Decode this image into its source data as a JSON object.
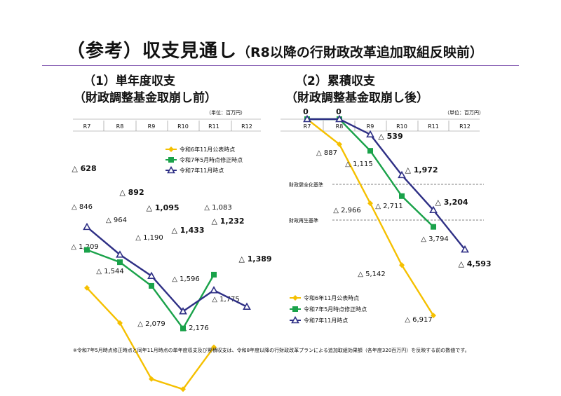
{
  "title": {
    "main": "（参考）収支見通し",
    "sub": "（R8以降の行財政改革追加取組反映前）"
  },
  "panel1": {
    "heading": "（1）単年度収支",
    "subheading": "（財政調整基金取崩し前）"
  },
  "panel2": {
    "heading": "（2）累積収支",
    "subheading": "（財政調整基金取崩し後）"
  },
  "footnote": "※令和7年5月時点修正時点と同年11月時点の単年度収支及び累積収支は、令和8年度以降の行財政改革プランによる追加取組効果額（各年度320百万円）を反映する前の数値です。",
  "colors": {
    "series1": "#f5c000",
    "series2": "#1aa24a",
    "series3": "#2e2f85",
    "rule": "#8e68b8"
  },
  "chart_data": [
    {
      "type": "line",
      "title": "（1）単年度収支（財政調整基金取崩し前）",
      "unit": "（単位：百万円）",
      "categories": [
        "R7",
        "R8",
        "R9",
        "R10",
        "R11",
        "R12"
      ],
      "sign": "△ denotes deficit; values plotted as negatives",
      "ylim": [
        -2300,
        0
      ],
      "series": [
        {
          "name": "令和6年11月公表時点",
          "marker": "diamond",
          "values": [
            -1209,
            -1544,
            -2079,
            -2176,
            -1775,
            null
          ],
          "labels": [
            "△ 1,209",
            "△ 1,544",
            "△ 2,079",
            "△ 2,176",
            "△ 1,775",
            ""
          ]
        },
        {
          "name": "令和7年5月時点修正時点",
          "marker": "square",
          "values": [
            -846,
            -964,
            -1190,
            -1596,
            -1083,
            null
          ],
          "labels": [
            "△ 846",
            "△ 964",
            "△ 1,190",
            "△ 1,596",
            "△ 1,083",
            ""
          ]
        },
        {
          "name": "令和7年11月時点",
          "marker": "triangle",
          "values": [
            -628,
            -892,
            -1095,
            -1433,
            -1232,
            -1389
          ],
          "labels": [
            "△ 628",
            "△ 892",
            "△ 1,095",
            "△ 1,433",
            "△ 1,232",
            "△ 1,389"
          ]
        }
      ],
      "legend_position": "top-right"
    },
    {
      "type": "line",
      "title": "（2）累積収支（財政調整基金取崩し後）",
      "unit": "（単位：百万円）",
      "categories": [
        "R7",
        "R8",
        "R9",
        "R10",
        "R11",
        "R12"
      ],
      "ylim": [
        -7000,
        0
      ],
      "series": [
        {
          "name": "令和6年11月公表時点",
          "marker": "diamond",
          "values": [
            0,
            -887,
            -2966,
            -5142,
            -6917,
            null
          ],
          "labels": [
            "",
            "△ 887",
            "△ 2,966",
            "△ 5,142",
            "△ 6,917",
            ""
          ]
        },
        {
          "name": "令和7年5月時点修正時点",
          "marker": "square",
          "values": [
            0,
            0,
            -1115,
            -2711,
            -3794,
            null
          ],
          "labels": [
            "",
            "",
            "△ 1,115",
            "△ 2,711",
            "△ 3,794",
            ""
          ]
        },
        {
          "name": "令和7年11月時点",
          "marker": "triangle",
          "values": [
            0,
            0,
            -539,
            -1972,
            -3204,
            -4593
          ],
          "labels": [
            "0",
            "0",
            "△ 539",
            "△ 1,972",
            "△ 3,204",
            "△ 4,593"
          ]
        }
      ],
      "reference_lines": [
        {
          "label": "財政健全化基準",
          "value": -2200
        },
        {
          "label": "財政再生基準",
          "value": -3350
        }
      ],
      "legend_position": "bottom-left"
    }
  ]
}
